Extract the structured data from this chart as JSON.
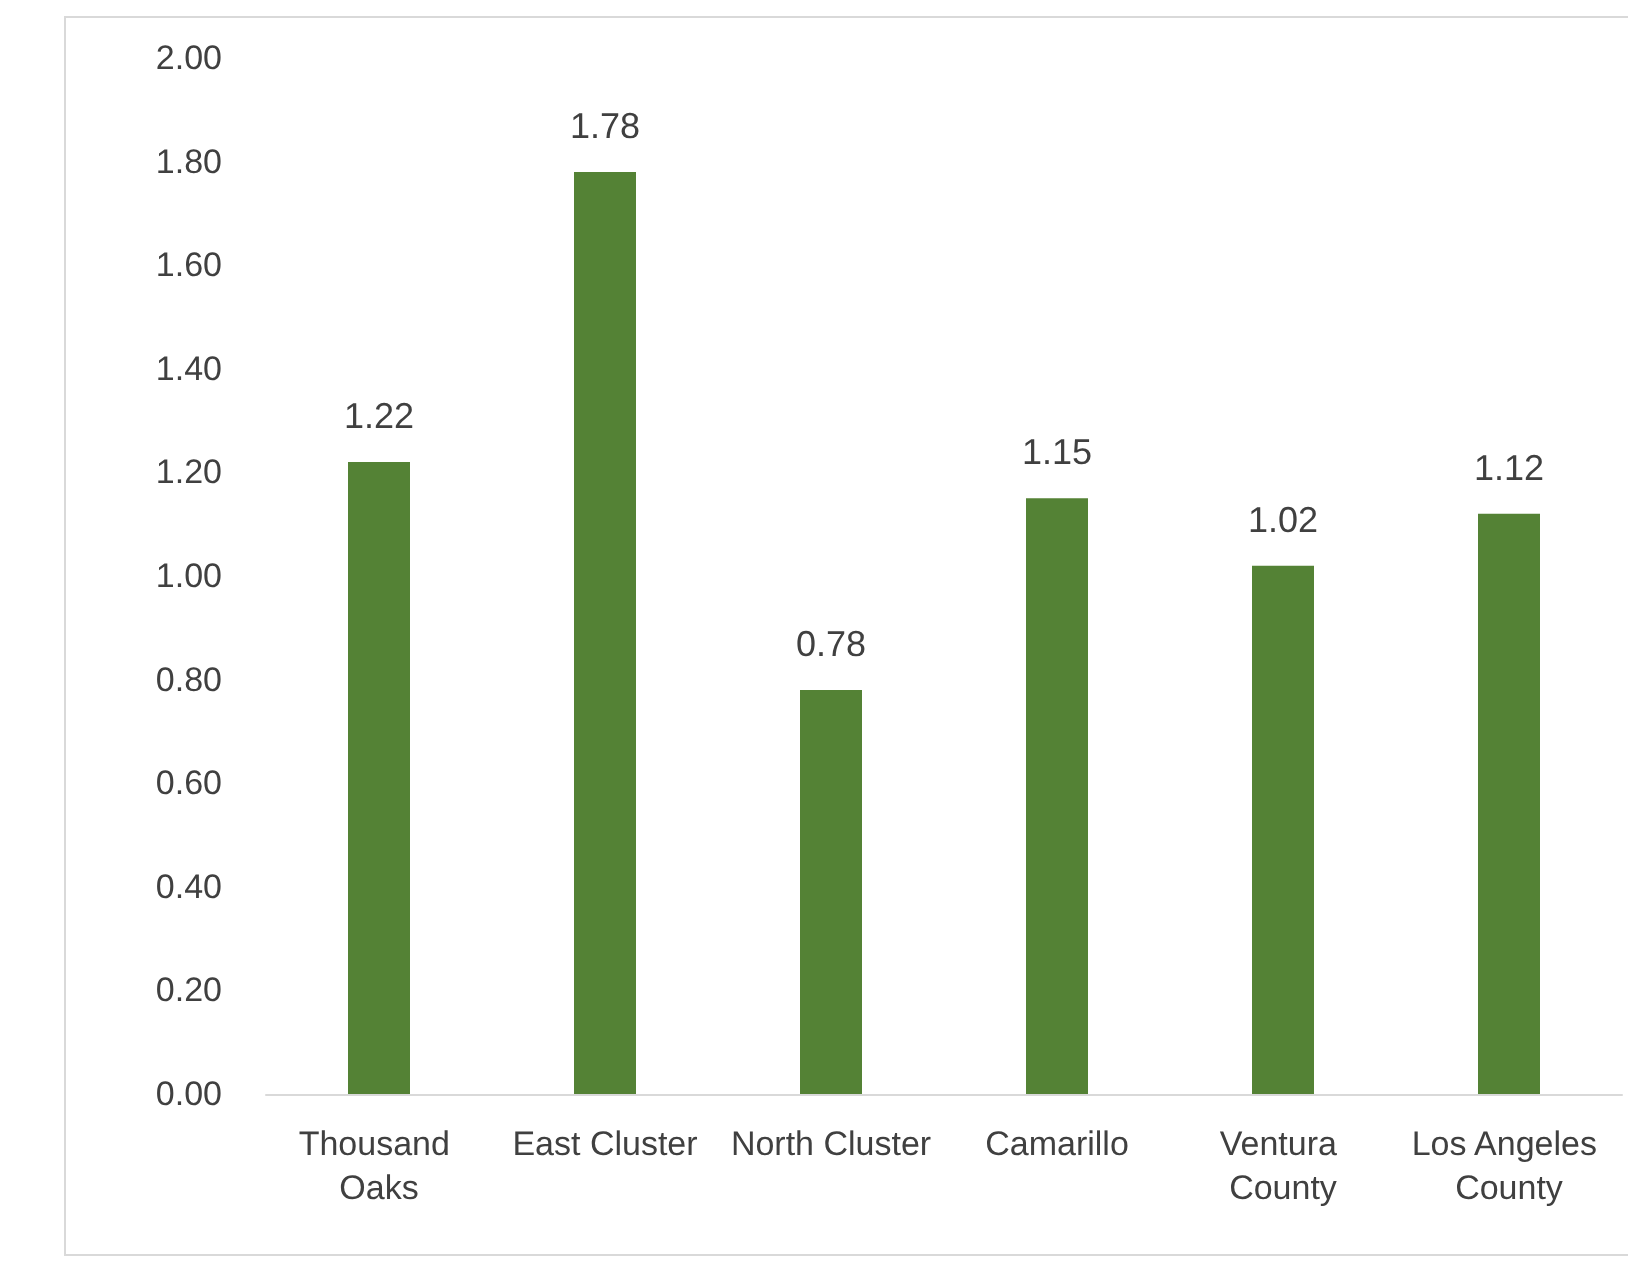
{
  "chart_data": {
    "type": "bar",
    "categories": [
      "Thousand Oaks",
      "East Cluster",
      "North Cluster",
      "Camarillo",
      "Ventura County",
      "Los Angeles County"
    ],
    "values": [
      1.22,
      1.78,
      0.78,
      1.15,
      1.02,
      1.12
    ],
    "color": "#548235",
    "ylim": [
      0,
      2
    ],
    "yticks": [
      {
        "value": 0,
        "label": "0.00"
      },
      {
        "value": 0.2,
        "label": "0.20"
      },
      {
        "value": 0.4,
        "label": "0.40"
      },
      {
        "value": 0.6,
        "label": "0.60"
      },
      {
        "value": 0.8,
        "label": "0.80"
      },
      {
        "value": 1,
        "label": "1.00"
      },
      {
        "value": 1.2,
        "label": "1.20"
      },
      {
        "value": 1.4,
        "label": "1.40"
      },
      {
        "value": 1.6,
        "label": "1.60"
      },
      {
        "value": 1.8,
        "label": "1.80"
      },
      {
        "value": 2,
        "label": "2.00"
      }
    ],
    "grid": false,
    "data_labels": true
  }
}
